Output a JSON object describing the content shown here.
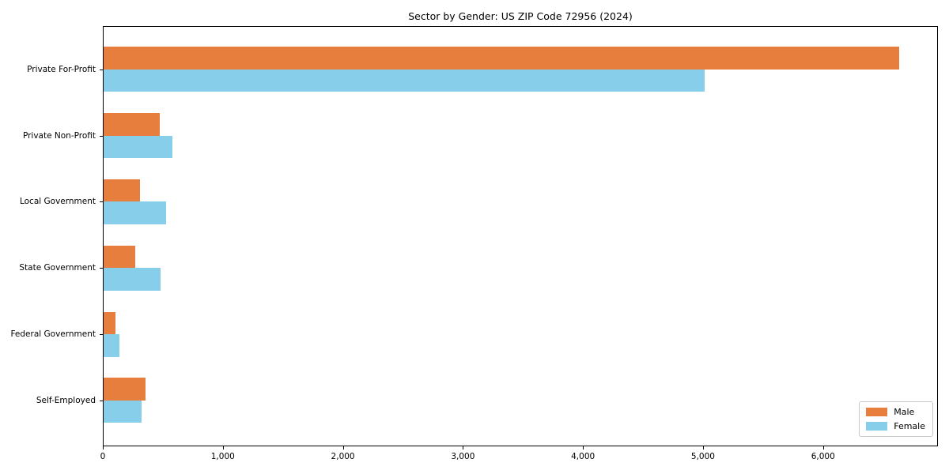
{
  "title": "Sector by Gender: US ZIP Code 72956 (2024)",
  "chart_data": {
    "type": "bar",
    "orientation": "horizontal",
    "title": "Sector by Gender: US ZIP Code 72956 (2024)",
    "categories": [
      "Private For-Profit",
      "Private Non-Profit",
      "Local Government",
      "State Government",
      "Federal Government",
      "Self-Employed"
    ],
    "series": [
      {
        "name": "Male",
        "color": "#e87e3d",
        "values": [
          6626,
          466,
          305,
          262,
          97,
          350
        ]
      },
      {
        "name": "Female",
        "color": "#87ceeb",
        "values": [
          5004,
          576,
          521,
          473,
          130,
          314
        ]
      }
    ],
    "xlabel": "",
    "ylabel": "",
    "xlim": [
      0,
      6957
    ],
    "xticks": {
      "values": [
        0,
        1000,
        2000,
        3000,
        4000,
        5000,
        6000
      ],
      "labels": [
        "0",
        "1,000",
        "2,000",
        "3,000",
        "4,000",
        "5,000",
        "6,000"
      ]
    },
    "legend": {
      "position": "lower right",
      "entries": [
        "Male",
        "Female"
      ]
    },
    "grid": false
  }
}
